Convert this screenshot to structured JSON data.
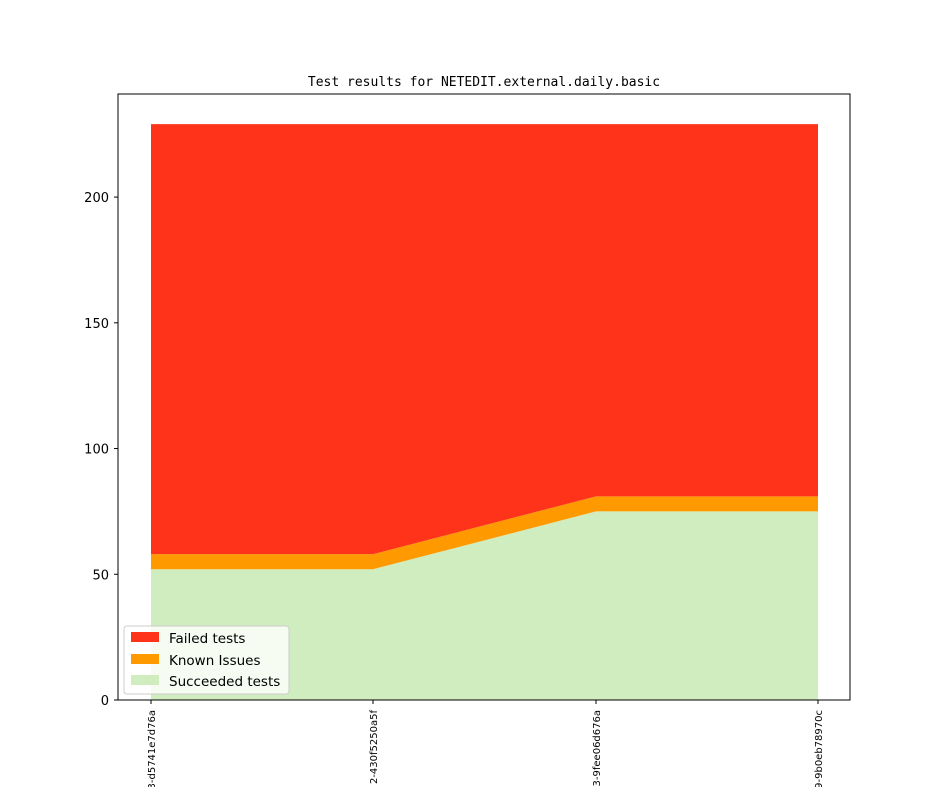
{
  "chart_data": {
    "type": "area",
    "stacked": true,
    "title": "Test results for NETEDIT.external.daily.basic",
    "xlabel": "",
    "ylabel": "",
    "x_tick_labels": [
      "3-d5741e7d76a",
      "2-430f5250a5f",
      "3-9fee06d676a",
      "9-9b0eb78970c"
    ],
    "ylim": [
      0,
      241
    ],
    "yticks": [
      0,
      50,
      100,
      150,
      200
    ],
    "grid": false,
    "legend_position": "lower-left",
    "series": [
      {
        "name": "Succeeded tests",
        "color": "#cfedbf",
        "values": [
          52,
          52,
          75,
          75
        ]
      },
      {
        "name": "Known Issues",
        "color": "#ff9900",
        "values": [
          6,
          6,
          6,
          6
        ]
      },
      {
        "name": "Failed tests",
        "color": "#ff331a",
        "values": [
          171,
          171,
          148,
          148
        ]
      }
    ],
    "legend_order": [
      "Failed tests",
      "Known Issues",
      "Succeeded tests"
    ]
  }
}
